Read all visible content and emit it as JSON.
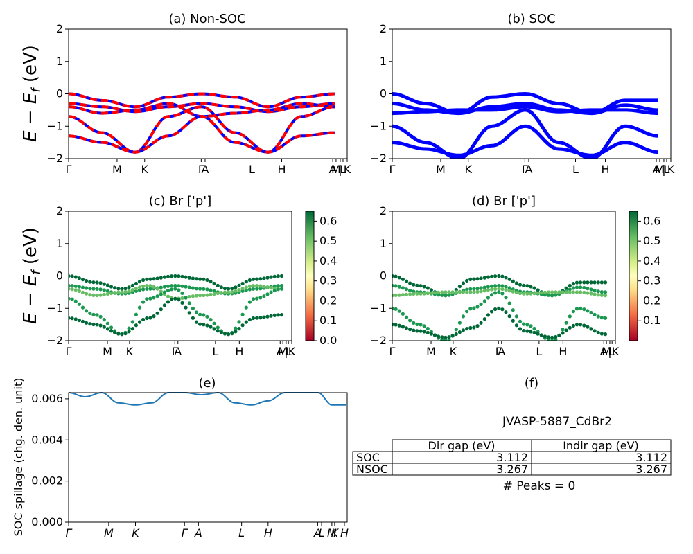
{
  "panels": [
    {
      "id": "a",
      "title": "(a) Non-SOC",
      "ylabel": "E - E_f (eV)",
      "yticks": [
        "2",
        "1",
        "0",
        "−1",
        "−2"
      ]
    },
    {
      "id": "b",
      "title": "(b) SOC",
      "yticks": [
        "2",
        "1",
        "0",
        "−1",
        "−2"
      ]
    },
    {
      "id": "c",
      "title": "(c)  Br ['p']",
      "ylabel": "E - E_f (eV)",
      "yticks": [
        "2",
        "1",
        "0",
        "−1",
        "−2"
      ]
    },
    {
      "id": "d",
      "title": "(d) Br ['p']",
      "yticks": [
        "2",
        "1",
        "0",
        "−1",
        "−2"
      ]
    },
    {
      "id": "e",
      "title": "(e)",
      "ylabel": "SOC spillage (chg. den. unit)",
      "yticks": [
        "0.006",
        "0.004",
        "0.002",
        "0.000"
      ]
    },
    {
      "id": "f",
      "title": "(f)"
    }
  ],
  "kpath_labels": [
    "Γ",
    "M",
    "K",
    "Γ",
    "A",
    "L",
    "H",
    "A",
    "M",
    "|",
    "L",
    "K"
  ],
  "kpath_labels_e": [
    "Γ",
    "M",
    "K",
    "Γ",
    "A",
    "L",
    "H",
    "A",
    "L",
    "M",
    "K",
    "H"
  ],
  "colorbar_c": {
    "ticks": [
      "0.6",
      "0.5",
      "0.4",
      "0.3",
      "0.2",
      "0.1",
      "0.0"
    ]
  },
  "colorbar_d": {
    "ticks": [
      "0.6",
      "0.5",
      "0.4",
      "0.3",
      "0.2",
      "0.1"
    ]
  },
  "table": {
    "title": "JVASP-5887_CdBr2",
    "col_headers": [
      "Dir gap (eV)",
      "Indir gap (eV)"
    ],
    "rows": [
      {
        "label": "SOC",
        "dir": "3.112",
        "indir": "3.112"
      },
      {
        "label": "NSOC",
        "dir": "3.267",
        "indir": "3.267"
      }
    ],
    "peaks": "# Peaks = 0"
  },
  "chart_data": [
    {
      "panel": "a",
      "type": "line",
      "title": "(a) Non-SOC",
      "ylabel": "E − E_f (eV)",
      "ylim": [
        -2,
        2
      ],
      "x_ticks": [
        "Γ",
        "M",
        "K",
        "Γ",
        "A",
        "L",
        "H",
        "A",
        "M",
        "|",
        "L",
        "K"
      ],
      "series": [
        {
          "values": [
            0.0,
            -0.2,
            -0.4,
            -0.1,
            0.0,
            -0.1,
            -0.4,
            -0.1,
            0.0
          ]
        },
        {
          "values": [
            -0.3,
            -0.4,
            -0.55,
            -0.4,
            -0.3,
            -0.4,
            -0.55,
            -0.4,
            -0.3
          ]
        },
        {
          "values": [
            -0.4,
            -0.6,
            -0.5,
            -0.3,
            -0.7,
            -0.6,
            -0.5,
            -0.3,
            -0.4
          ]
        },
        {
          "values": [
            -0.7,
            -1.2,
            -1.8,
            -0.7,
            -0.4,
            -1.2,
            -1.8,
            -0.7,
            -0.4
          ]
        },
        {
          "values": [
            -1.3,
            -1.5,
            -1.8,
            -1.3,
            -0.7,
            -1.5,
            -1.8,
            -1.3,
            -1.2
          ]
        }
      ],
      "colors": {
        "solid": "#0000ff",
        "dashed": "#ff0000"
      }
    },
    {
      "panel": "b",
      "type": "line",
      "title": "(b) SOC",
      "ylim": [
        -2,
        2
      ],
      "x_ticks": [
        "Γ",
        "M",
        "K",
        "Γ",
        "A",
        "L",
        "H",
        "A",
        "M",
        "|",
        "L",
        "K"
      ],
      "series": [
        {
          "values": [
            0.0,
            -0.3,
            -0.6,
            -0.1,
            0.0,
            -0.3,
            -0.6,
            -0.2,
            -0.2
          ]
        },
        {
          "values": [
            -0.3,
            -0.5,
            -0.6,
            -0.4,
            -0.3,
            -0.5,
            -0.6,
            -0.35,
            -0.5
          ]
        },
        {
          "values": [
            -0.6,
            -0.55,
            -0.5,
            -0.5,
            -0.4,
            -0.55,
            -0.5,
            -0.5,
            -0.6
          ]
        },
        {
          "values": [
            -1.0,
            -1.5,
            -2.0,
            -1.0,
            -0.5,
            -1.5,
            -2.0,
            -1.0,
            -1.3
          ]
        },
        {
          "values": [
            -1.5,
            -1.7,
            -1.9,
            -1.6,
            -1.0,
            -1.7,
            -1.9,
            -1.5,
            -1.8
          ]
        }
      ],
      "colors": {
        "line": "#0000ff"
      }
    },
    {
      "panel": "c",
      "type": "scatter",
      "title": "(c)  Br ['p']",
      "ylabel": "E − E_f (eV)",
      "ylim": [
        -2,
        2
      ],
      "colorbar_range": [
        0.0,
        0.65
      ],
      "x_ticks": [
        "Γ",
        "M",
        "K",
        "Γ",
        "A",
        "L",
        "H",
        "A",
        "M",
        "|",
        "L",
        "K"
      ]
    },
    {
      "panel": "d",
      "type": "scatter",
      "title": "(d) Br ['p']",
      "ylim": [
        -2,
        2
      ],
      "colorbar_range": [
        0.0,
        0.65
      ],
      "x_ticks": [
        "Γ",
        "M",
        "K",
        "Γ",
        "A",
        "L",
        "H",
        "A",
        "M",
        "|",
        "L",
        "K"
      ]
    },
    {
      "panel": "e",
      "type": "line",
      "title": "(e)",
      "ylabel": "SOC spillage (chg. den. unit)",
      "ylim": [
        0.0,
        0.0063
      ],
      "x_ticks": [
        "Γ",
        "M",
        "K",
        "Γ",
        "A",
        "L",
        "H",
        "A",
        "L",
        "M",
        "K",
        "H"
      ],
      "x": [
        0,
        0.06,
        0.12,
        0.18,
        0.24,
        0.3,
        0.36,
        0.42,
        0.48,
        0.54,
        0.6,
        0.66,
        0.72,
        0.78,
        0.84,
        0.9,
        0.95,
        1.0
      ],
      "values": [
        0.0063,
        0.0061,
        0.0063,
        0.0058,
        0.0057,
        0.0058,
        0.0063,
        0.0063,
        0.0062,
        0.0063,
        0.0058,
        0.0057,
        0.0059,
        0.0063,
        0.0063,
        0.0063,
        0.0057,
        0.0057
      ],
      "colors": {
        "line": "#1f77b4"
      }
    }
  ]
}
